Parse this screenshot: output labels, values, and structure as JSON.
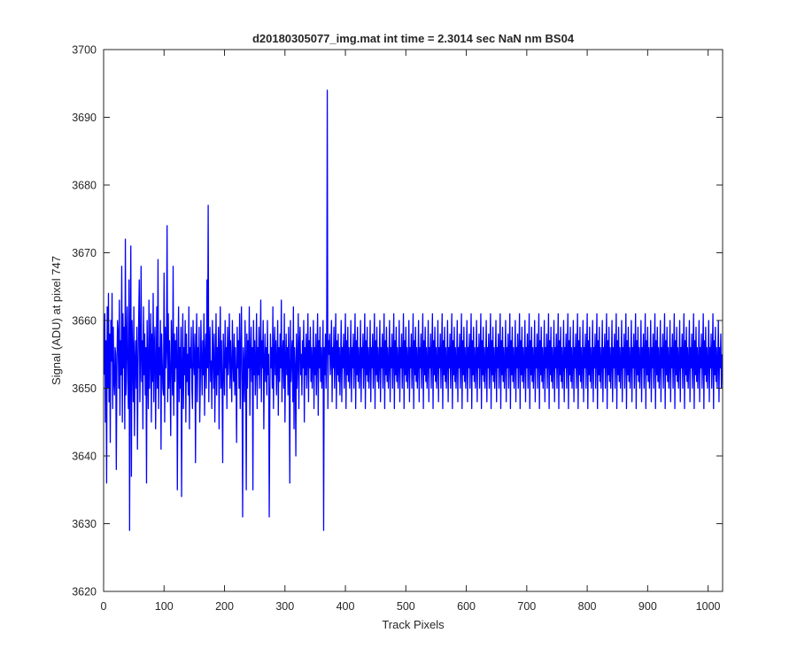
{
  "chart_data": {
    "type": "line",
    "title": "d20180305077_img.mat int time = 2.3014 sec  NaN nm BS04",
    "xlabel": "Track Pixels",
    "ylabel": "Signal (ADU) at pixel 747",
    "xlim": [
      0,
      1024
    ],
    "ylim": [
      3620,
      3700
    ],
    "xticks": [
      0,
      100,
      200,
      300,
      400,
      500,
      600,
      700,
      800,
      900,
      1000
    ],
    "yticks": [
      3620,
      3630,
      3640,
      3650,
      3660,
      3670,
      3680,
      3690,
      3700
    ],
    "grid": false,
    "legend": "none",
    "series": [
      {
        "color": "#0000ff",
        "x_start": 1,
        "x_step": 1,
        "values": [
          3652,
          3661,
          3645,
          3657,
          3636,
          3662,
          3650,
          3664,
          3648,
          3658,
          3642,
          3660,
          3654,
          3664,
          3647,
          3659,
          3651,
          3649,
          3656,
          3655,
          3638,
          3653,
          3660,
          3658,
          3650,
          3663,
          3646,
          3657,
          3652,
          3668,
          3645,
          3661,
          3653,
          3659,
          3644,
          3672,
          3649,
          3656,
          3662,
          3651,
          3647,
          3666,
          3629,
          3658,
          3671,
          3637,
          3660,
          3655,
          3648,
          3662,
          3643,
          3654,
          3657,
          3650,
          3659,
          3641,
          3653,
          3660,
          3666,
          3648,
          3655,
          3668,
          3651,
          3657,
          3644,
          3662,
          3652,
          3658,
          3649,
          3656,
          3636,
          3660,
          3653,
          3647,
          3663,
          3650,
          3655,
          3661,
          3645,
          3658,
          3651,
          3664,
          3648,
          3656,
          3659,
          3644,
          3653,
          3662,
          3650,
          3669,
          3647,
          3656,
          3652,
          3660,
          3641,
          3658,
          3654,
          3650,
          3649,
          3667,
          3645,
          3659,
          3653,
          3656,
          3674,
          3648,
          3661,
          3650,
          3657,
          3652,
          3643,
          3660,
          3655,
          3649,
          3668,
          3646,
          3658,
          3651,
          3657,
          3653,
          3659,
          3635,
          3654,
          3662,
          3648,
          3656,
          3650,
          3659,
          3634,
          3653,
          3661,
          3647,
          3656,
          3652,
          3660,
          3645,
          3658,
          3651,
          3655,
          3649,
          3662,
          3644,
          3656,
          3653,
          3659,
          3650,
          3647,
          3660,
          3654,
          3652,
          3658,
          3639,
          3655,
          3661,
          3648,
          3656,
          3653,
          3659,
          3645,
          3651,
          3660,
          3654,
          3649,
          3657,
          3652,
          3661,
          3646,
          3655,
          3658,
          3650,
          3666,
          3653,
          3677,
          3648,
          3656,
          3659,
          3651,
          3654,
          3647,
          3660,
          3655,
          3650,
          3658,
          3645,
          3653,
          3661,
          3649,
          3656,
          3652,
          3659,
          3644,
          3655,
          3662,
          3650,
          3657,
          3651,
          3639,
          3658,
          3654,
          3649,
          3660,
          3653,
          3656,
          3647,
          3659,
          3652,
          3655,
          3661,
          3650,
          3657,
          3653,
          3648,
          3660,
          3654,
          3651,
          3658,
          3649,
          3656,
          3652,
          3642,
          3659,
          3653,
          3657,
          3650,
          3661,
          3647,
          3655,
          3662,
          3651,
          3631,
          3656,
          3653,
          3648,
          3660,
          3654,
          3635,
          3658,
          3650,
          3657,
          3653,
          3662,
          3646,
          3655,
          3659,
          3651,
          3656,
          3635,
          3660,
          3652,
          3657,
          3649,
          3654,
          3661,
          3647,
          3656,
          3652,
          3659,
          3650,
          3655,
          3663,
          3648,
          3657,
          3653,
          3660,
          3644,
          3654,
          3658,
          3651,
          3656,
          3649,
          3660,
          3652,
          3655,
          3631,
          3648,
          3658,
          3653,
          3656,
          3650,
          3662,
          3647,
          3655,
          3659,
          3652,
          3657,
          3649,
          3654,
          3660,
          3646,
          3656,
          3651,
          3658,
          3653,
          3663,
          3648,
          3655,
          3657,
          3650,
          3661,
          3645,
          3654,
          3658,
          3652,
          3656,
          3649,
          3659,
          3653,
          3636,
          3660,
          3651,
          3655,
          3657,
          3648,
          3662,
          3644,
          3656,
          3653,
          3640,
          3658,
          3650,
          3654,
          3661,
          3647,
          3656,
          3659,
          3652,
          3655,
          3649,
          3657,
          3653,
          3660,
          3645,
          3656,
          3652,
          3658,
          3650,
          3655,
          3661,
          3648,
          3657,
          3653,
          3659,
          3651,
          3656,
          3650,
          3654,
          3660,
          3647,
          3656,
          3652,
          3658,
          3649,
          3655,
          3661,
          3646,
          3657,
          3653,
          3659,
          3651,
          3656,
          3650,
          3654,
          3660,
          3629,
          3656,
          3652,
          3658,
          3650,
          3656,
          3694,
          3647,
          3657,
          3655,
          3658,
          3652,
          3654,
          3660,
          3648,
          3656,
          3653,
          3659,
          3650,
          3655,
          3661,
          3647,
          3657,
          3652,
          3658,
          3651,
          3656,
          3649,
          3654,
          3660,
          3648,
          3656,
          3653,
          3658,
          3650,
          3655,
          3661,
          3647,
          3657,
          3652,
          3659,
          3651,
          3656,
          3650,
          3654,
          3660,
          3648,
          3656,
          3653,
          3658,
          3650,
          3655,
          3661,
          3647,
          3657,
          3652,
          3659,
          3651,
          3656,
          3650,
          3654,
          3660,
          3648,
          3656,
          3653,
          3658,
          3650,
          3655,
          3661,
          3647,
          3657,
          3652,
          3659,
          3651,
          3656,
          3650,
          3654,
          3660,
          3648,
          3656,
          3653,
          3658,
          3650,
          3655,
          3661,
          3647,
          3657,
          3652,
          3659,
          3651,
          3656,
          3650,
          3654,
          3660,
          3648,
          3656,
          3653,
          3658,
          3650,
          3655,
          3661,
          3647,
          3657,
          3652,
          3659,
          3651,
          3656,
          3650,
          3654,
          3660,
          3648,
          3656,
          3653,
          3658,
          3650,
          3655,
          3661,
          3647,
          3657,
          3652,
          3659,
          3651,
          3656,
          3650,
          3654,
          3660,
          3648,
          3656,
          3653,
          3658,
          3650,
          3655,
          3661,
          3647,
          3657,
          3652,
          3659,
          3651,
          3656,
          3650,
          3654,
          3660,
          3648,
          3656,
          3653,
          3658,
          3650,
          3655,
          3661,
          3647,
          3657,
          3652,
          3659,
          3651,
          3656,
          3650,
          3654,
          3660,
          3648,
          3656,
          3653,
          3658,
          3650,
          3655,
          3661,
          3647,
          3657,
          3652,
          3659,
          3651,
          3656,
          3650,
          3654,
          3660,
          3648,
          3656,
          3653,
          3658,
          3650,
          3655,
          3661,
          3647,
          3657,
          3652,
          3659,
          3651,
          3656,
          3650,
          3654,
          3660,
          3648,
          3656,
          3653,
          3658,
          3650,
          3655,
          3661,
          3647,
          3657,
          3652,
          3659,
          3651,
          3656,
          3650,
          3654,
          3660,
          3648,
          3656,
          3653,
          3658,
          3650,
          3655,
          3661,
          3647,
          3657,
          3652,
          3659,
          3651,
          3656,
          3650,
          3654,
          3660,
          3648,
          3656,
          3653,
          3658,
          3650,
          3655,
          3661,
          3647,
          3657,
          3652,
          3659,
          3651,
          3656,
          3650,
          3654,
          3660,
          3648,
          3656,
          3653,
          3658,
          3650,
          3655,
          3661,
          3647,
          3657,
          3652,
          3659,
          3651,
          3656,
          3650,
          3654,
          3660,
          3648,
          3656,
          3653,
          3658,
          3650,
          3655,
          3661,
          3647,
          3657,
          3652,
          3659,
          3651,
          3656,
          3650,
          3654,
          3660,
          3648,
          3656,
          3653,
          3658,
          3650,
          3655,
          3661,
          3647,
          3657,
          3652,
          3659,
          3651,
          3656,
          3650,
          3654,
          3660,
          3648,
          3656,
          3653,
          3658,
          3650,
          3655,
          3661,
          3647,
          3657,
          3652,
          3659,
          3651,
          3656,
          3650,
          3654,
          3660,
          3648,
          3656,
          3653,
          3658,
          3650,
          3655,
          3661,
          3647,
          3657,
          3652,
          3659,
          3651,
          3656,
          3650,
          3654,
          3660,
          3648,
          3656,
          3653,
          3658,
          3650,
          3655,
          3661,
          3647,
          3657,
          3652,
          3659,
          3651,
          3656,
          3650,
          3654,
          3660,
          3648,
          3656,
          3653,
          3658,
          3650,
          3655,
          3661,
          3647,
          3657,
          3652,
          3659,
          3651,
          3656,
          3650,
          3654,
          3660,
          3648,
          3656,
          3653,
          3658,
          3650,
          3655,
          3661,
          3647,
          3657,
          3652,
          3659,
          3651,
          3656,
          3650,
          3654,
          3660,
          3648,
          3656,
          3653,
          3658,
          3650,
          3655,
          3661,
          3647,
          3657,
          3652,
          3659,
          3651,
          3656,
          3650,
          3654,
          3660,
          3648,
          3656,
          3653,
          3658,
          3650,
          3655,
          3661,
          3647,
          3657,
          3652,
          3659,
          3651,
          3656,
          3650,
          3654,
          3660,
          3648,
          3656,
          3653,
          3658,
          3650,
          3655,
          3661,
          3647,
          3657,
          3652,
          3659,
          3651,
          3656,
          3650,
          3654,
          3660,
          3648,
          3656,
          3653,
          3658,
          3650,
          3655,
          3661,
          3647,
          3657,
          3652,
          3659,
          3651,
          3656,
          3650,
          3654,
          3660,
          3648,
          3656,
          3653,
          3658,
          3650,
          3655,
          3661,
          3647,
          3657,
          3652,
          3659,
          3651,
          3656,
          3650,
          3654,
          3660,
          3648,
          3656,
          3653,
          3658,
          3650,
          3655,
          3661,
          3647,
          3657,
          3652,
          3659,
          3651,
          3656,
          3650,
          3654,
          3660,
          3648,
          3656,
          3653,
          3658,
          3650,
          3655,
          3661,
          3647,
          3657,
          3652,
          3659,
          3651,
          3656,
          3650,
          3654,
          3660,
          3648,
          3656,
          3653,
          3658,
          3650,
          3655,
          3661,
          3647,
          3657,
          3652,
          3659,
          3651,
          3656,
          3650,
          3654,
          3660,
          3648,
          3656,
          3653,
          3658,
          3650,
          3655,
          3661,
          3647,
          3657,
          3652,
          3659,
          3651,
          3656,
          3650,
          3654,
          3660,
          3648,
          3656,
          3653,
          3658,
          3650,
          3655,
          3661,
          3647,
          3657,
          3652,
          3659,
          3651,
          3656,
          3650,
          3654,
          3660,
          3648,
          3656,
          3653,
          3658,
          3650,
          3655,
          3661,
          3647,
          3657,
          3652,
          3659,
          3651,
          3656,
          3650,
          3654,
          3660,
          3648,
          3656,
          3653,
          3658,
          3650,
          3655,
          3661,
          3647,
          3657,
          3652,
          3659,
          3651,
          3656,
          3650,
          3654,
          3660,
          3648,
          3656,
          3653,
          3658,
          3650,
          3655,
          3661,
          3647,
          3657,
          3652,
          3659,
          3651,
          3656,
          3650,
          3654,
          3660,
          3648,
          3656,
          3653,
          3658,
          3650,
          3655,
          3661,
          3647,
          3657,
          3652,
          3659,
          3651,
          3656,
          3650,
          3654,
          3660,
          3648,
          3656,
          3653,
          3658,
          3650,
          3655,
          3661,
          3647,
          3657,
          3652,
          3659,
          3651,
          3656,
          3650,
          3654,
          3660,
          3648,
          3656,
          3653,
          3658,
          3650,
          3655,
          3661,
          3647,
          3657,
          3652,
          3659,
          3651,
          3656,
          3650,
          3654,
          3660,
          3648,
          3656,
          3653,
          3658,
          3650,
          3655,
          3661,
          3647,
          3657,
          3652,
          3659,
          3651,
          3656,
          3650,
          3654,
          3660,
          3648,
          3656,
          3653,
          3658,
          3650,
          3655,
          3661,
          3647,
          3657,
          3652,
          3659,
          3651,
          3656,
          3650,
          3654,
          3660,
          3648,
          3656,
          3653,
          3658,
          3650,
          3655
        ]
      }
    ]
  }
}
